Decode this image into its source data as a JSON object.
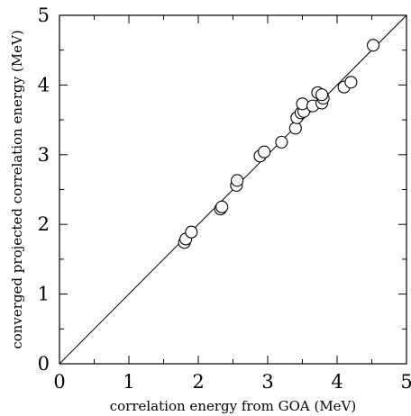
{
  "chart_data": {
    "type": "scatter",
    "title": "",
    "xlabel": "correlation energy from GOA (MeV)",
    "ylabel": "converged projected correlation energy (MeV)",
    "xlim": [
      0,
      5
    ],
    "ylim": [
      0,
      5
    ],
    "xticks": [
      0,
      1,
      2,
      3,
      4,
      5
    ],
    "yticks": [
      0,
      1,
      2,
      3,
      4,
      5
    ],
    "minor_tick_step": 0.5,
    "grid": false,
    "legend": "none",
    "reference_line": {
      "type": "y=x",
      "from": [
        0,
        0
      ],
      "to": [
        5,
        5
      ]
    },
    "marker": "open-circle",
    "points": [
      [
        1.8,
        1.74
      ],
      [
        1.82,
        1.79
      ],
      [
        1.9,
        1.89
      ],
      [
        2.32,
        2.22
      ],
      [
        2.34,
        2.25
      ],
      [
        2.55,
        2.56
      ],
      [
        2.56,
        2.63
      ],
      [
        2.89,
        2.98
      ],
      [
        2.95,
        3.04
      ],
      [
        3.2,
        3.18
      ],
      [
        3.4,
        3.38
      ],
      [
        3.42,
        3.53
      ],
      [
        3.48,
        3.6
      ],
      [
        3.52,
        3.62
      ],
      [
        3.5,
        3.73
      ],
      [
        3.65,
        3.7
      ],
      [
        3.72,
        3.89
      ],
      [
        3.78,
        3.74
      ],
      [
        3.8,
        3.81
      ],
      [
        3.78,
        3.86
      ],
      [
        4.1,
        3.97
      ],
      [
        4.2,
        4.04
      ],
      [
        4.52,
        4.57
      ]
    ]
  }
}
